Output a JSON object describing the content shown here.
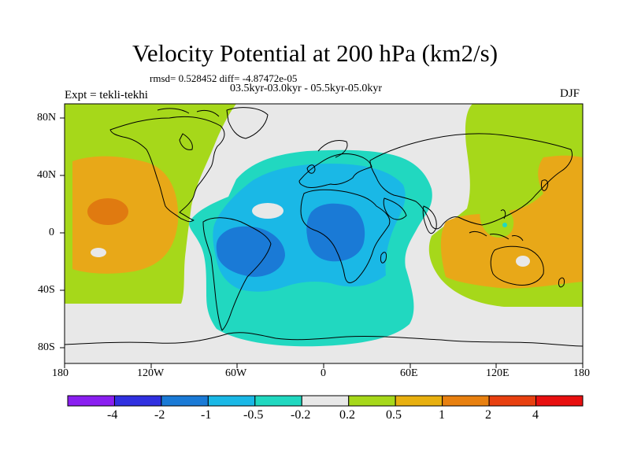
{
  "title": "Velocity Potential at 200 hPa (km2/s)",
  "stats": "rmsd= 0.528452 diff= -4.87472e-05",
  "periods": "03.5kyr-03.0kyr - 05.5kyr-05.0kyr",
  "expt": "Expt = tekli-tekhi",
  "season": "DJF",
  "lon_labels": [
    "180",
    "120W",
    "60W",
    "0",
    "60E",
    "120E",
    "180"
  ],
  "lat_labels": [
    "80N",
    "40N",
    "0",
    "40S",
    "80S"
  ],
  "colorbar": {
    "labels": [
      "-4",
      "-2",
      "-1",
      "-0.5",
      "-0.2",
      "0.2",
      "0.5",
      "1",
      "2",
      "4"
    ],
    "colors": [
      "#8a1ff0",
      "#3030e0",
      "#1a7ad6",
      "#1ab8e6",
      "#21d8c0",
      "#e8e8e8",
      "#a6d81a",
      "#e8b010",
      "#e88010",
      "#e84010",
      "#e81010"
    ]
  },
  "colors": {
    "neutral": "#e8e8e8",
    "light_positive": "#a6d81a",
    "positive": "#e8a818",
    "strong_positive": "#e07a10",
    "light_negative": "#21d8c0",
    "negative": "#1ab8e6",
    "strong_negative": "#1a7ad6"
  }
}
